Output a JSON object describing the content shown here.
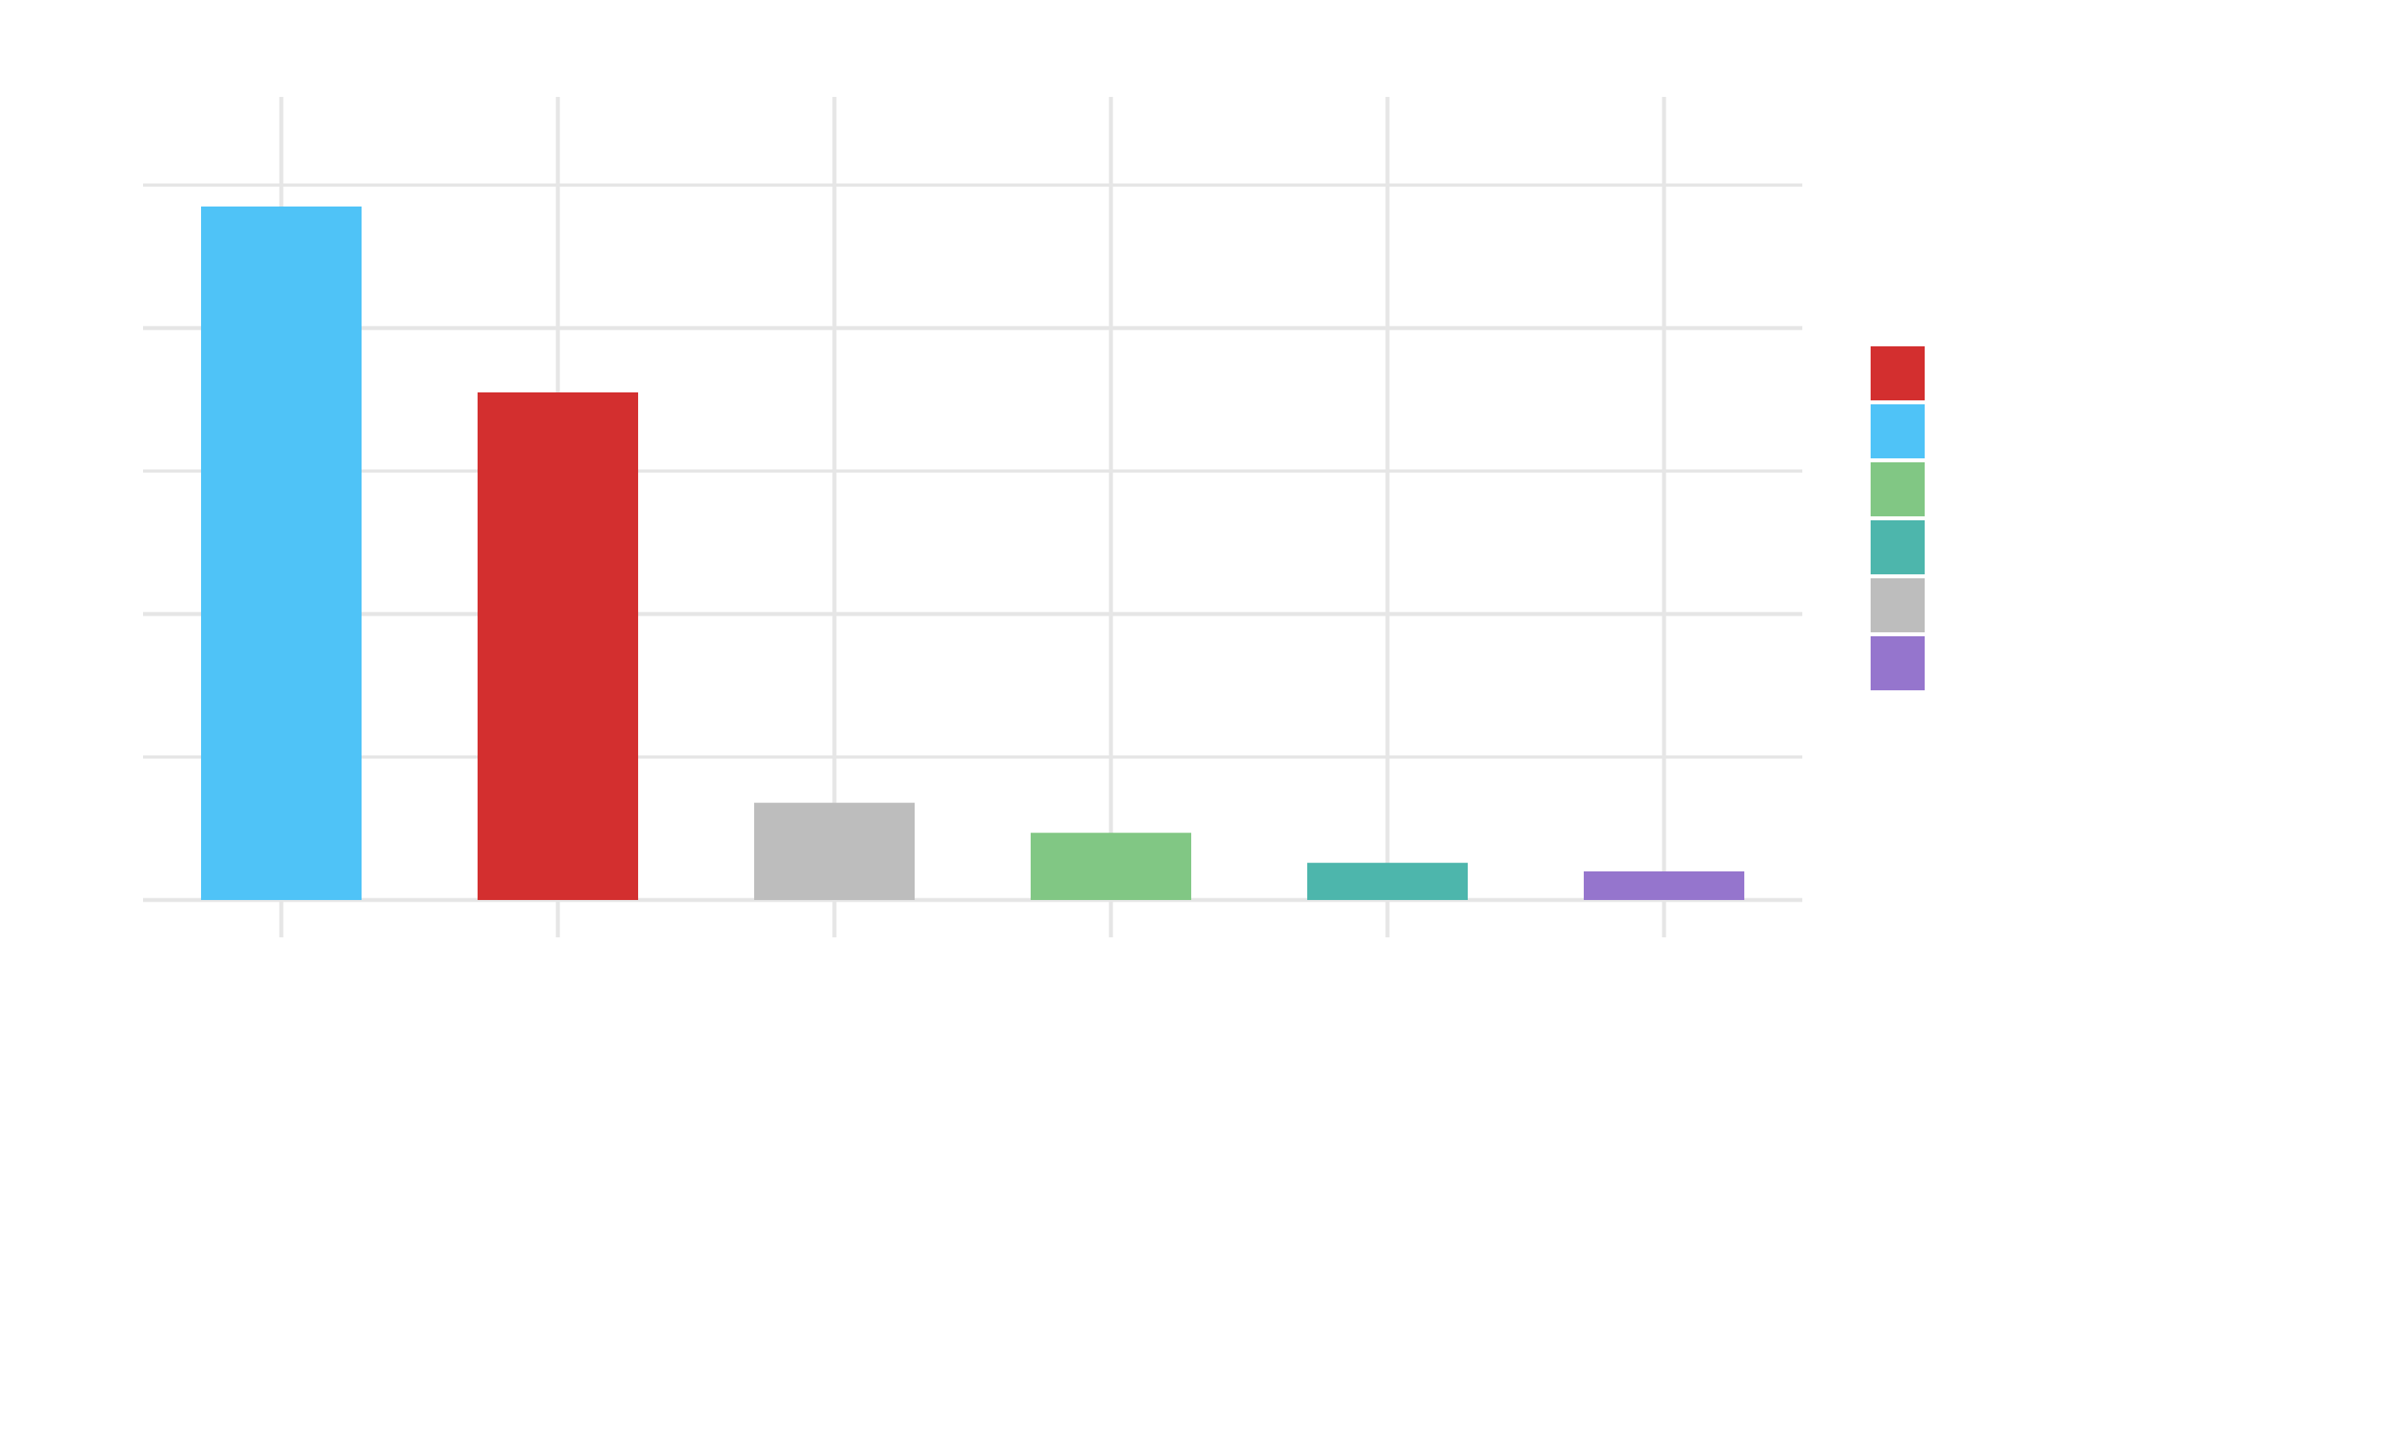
{
  "chart_data": {
    "type": "bar",
    "title": "",
    "xlabel": "",
    "ylabel": "",
    "categories": [
      "",
      "",
      "",
      "",
      "",
      ""
    ],
    "values": [
      48.5,
      35.5,
      6.8,
      4.7,
      2.6,
      2.0
    ],
    "bar_colors": [
      "#4FC3F7",
      "#D32F2F",
      "#BDBDBD",
      "#81C784",
      "#4DB6AC",
      "#9575CD"
    ],
    "ylim": [
      0,
      50
    ],
    "grid": true,
    "legend": {
      "placement": "right",
      "entries": [
        {
          "label": "",
          "color": "#D32F2F"
        },
        {
          "label": "",
          "color": "#4FC3F7"
        },
        {
          "label": "",
          "color": "#81C784"
        },
        {
          "label": "",
          "color": "#4DB6AC"
        },
        {
          "label": "",
          "color": "#BDBDBD"
        },
        {
          "label": "",
          "color": "#9575CD"
        }
      ]
    }
  }
}
